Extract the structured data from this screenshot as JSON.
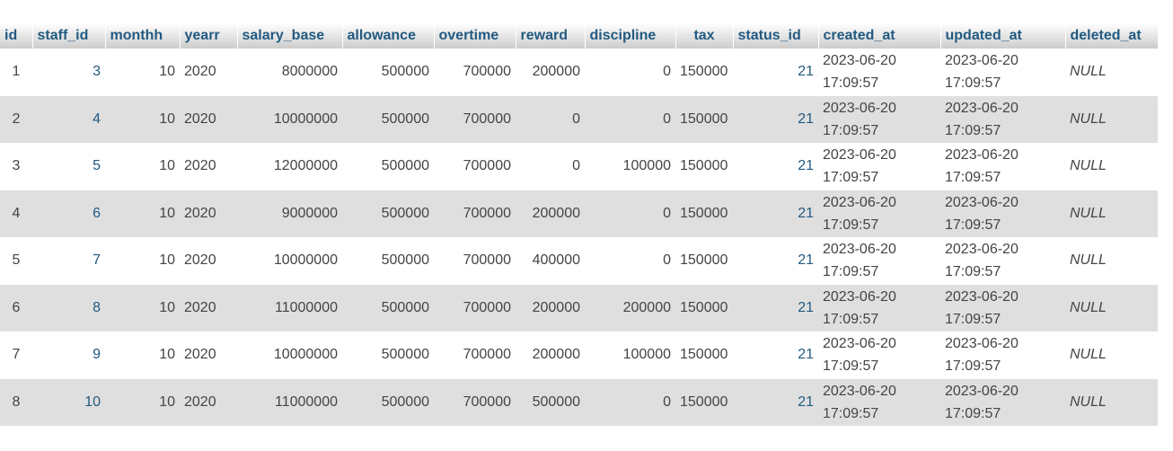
{
  "table": {
    "columns": [
      "id",
      "staff_id",
      "monthh",
      "yearr",
      "salary_base",
      "allowance",
      "overtime",
      "reward",
      "discipline",
      "tax",
      "status_id",
      "created_at",
      "updated_at",
      "deleted_at"
    ],
    "rows": [
      {
        "id": "1",
        "staff_id": "3",
        "monthh": "10",
        "yearr": "2020",
        "salary_base": "8000000",
        "allowance": "500000",
        "overtime": "700000",
        "reward": "200000",
        "discipline": "0",
        "tax": "150000",
        "status_id": "21",
        "created_date": "2023-06-20",
        "created_time": "17:09:57",
        "updated_date": "2023-06-20",
        "updated_time": "17:09:57",
        "deleted_at": "NULL"
      },
      {
        "id": "2",
        "staff_id": "4",
        "monthh": "10",
        "yearr": "2020",
        "salary_base": "10000000",
        "allowance": "500000",
        "overtime": "700000",
        "reward": "0",
        "discipline": "0",
        "tax": "150000",
        "status_id": "21",
        "created_date": "2023-06-20",
        "created_time": "17:09:57",
        "updated_date": "2023-06-20",
        "updated_time": "17:09:57",
        "deleted_at": "NULL"
      },
      {
        "id": "3",
        "staff_id": "5",
        "monthh": "10",
        "yearr": "2020",
        "salary_base": "12000000",
        "allowance": "500000",
        "overtime": "700000",
        "reward": "0",
        "discipline": "100000",
        "tax": "150000",
        "status_id": "21",
        "created_date": "2023-06-20",
        "created_time": "17:09:57",
        "updated_date": "2023-06-20",
        "updated_time": "17:09:57",
        "deleted_at": "NULL"
      },
      {
        "id": "4",
        "staff_id": "6",
        "monthh": "10",
        "yearr": "2020",
        "salary_base": "9000000",
        "allowance": "500000",
        "overtime": "700000",
        "reward": "200000",
        "discipline": "0",
        "tax": "150000",
        "status_id": "21",
        "created_date": "2023-06-20",
        "created_time": "17:09:57",
        "updated_date": "2023-06-20",
        "updated_time": "17:09:57",
        "deleted_at": "NULL"
      },
      {
        "id": "5",
        "staff_id": "7",
        "monthh": "10",
        "yearr": "2020",
        "salary_base": "10000000",
        "allowance": "500000",
        "overtime": "700000",
        "reward": "400000",
        "discipline": "0",
        "tax": "150000",
        "status_id": "21",
        "created_date": "2023-06-20",
        "created_time": "17:09:57",
        "updated_date": "2023-06-20",
        "updated_time": "17:09:57",
        "deleted_at": "NULL"
      },
      {
        "id": "6",
        "staff_id": "8",
        "monthh": "10",
        "yearr": "2020",
        "salary_base": "11000000",
        "allowance": "500000",
        "overtime": "700000",
        "reward": "200000",
        "discipline": "200000",
        "tax": "150000",
        "status_id": "21",
        "created_date": "2023-06-20",
        "created_time": "17:09:57",
        "updated_date": "2023-06-20",
        "updated_time": "17:09:57",
        "deleted_at": "NULL"
      },
      {
        "id": "7",
        "staff_id": "9",
        "monthh": "10",
        "yearr": "2020",
        "salary_base": "10000000",
        "allowance": "500000",
        "overtime": "700000",
        "reward": "200000",
        "discipline": "100000",
        "tax": "150000",
        "status_id": "21",
        "created_date": "2023-06-20",
        "created_time": "17:09:57",
        "updated_date": "2023-06-20",
        "updated_time": "17:09:57",
        "deleted_at": "NULL"
      },
      {
        "id": "8",
        "staff_id": "10",
        "monthh": "10",
        "yearr": "2020",
        "salary_base": "11000000",
        "allowance": "500000",
        "overtime": "700000",
        "reward": "500000",
        "discipline": "0",
        "tax": "150000",
        "status_id": "21",
        "created_date": "2023-06-20",
        "created_time": "17:09:57",
        "updated_date": "2023-06-20",
        "updated_time": "17:09:57",
        "deleted_at": "NULL"
      }
    ]
  },
  "colors": {
    "header_text": "#235a81",
    "row_alt": "#dfdfdf",
    "null_text": "#888888"
  }
}
